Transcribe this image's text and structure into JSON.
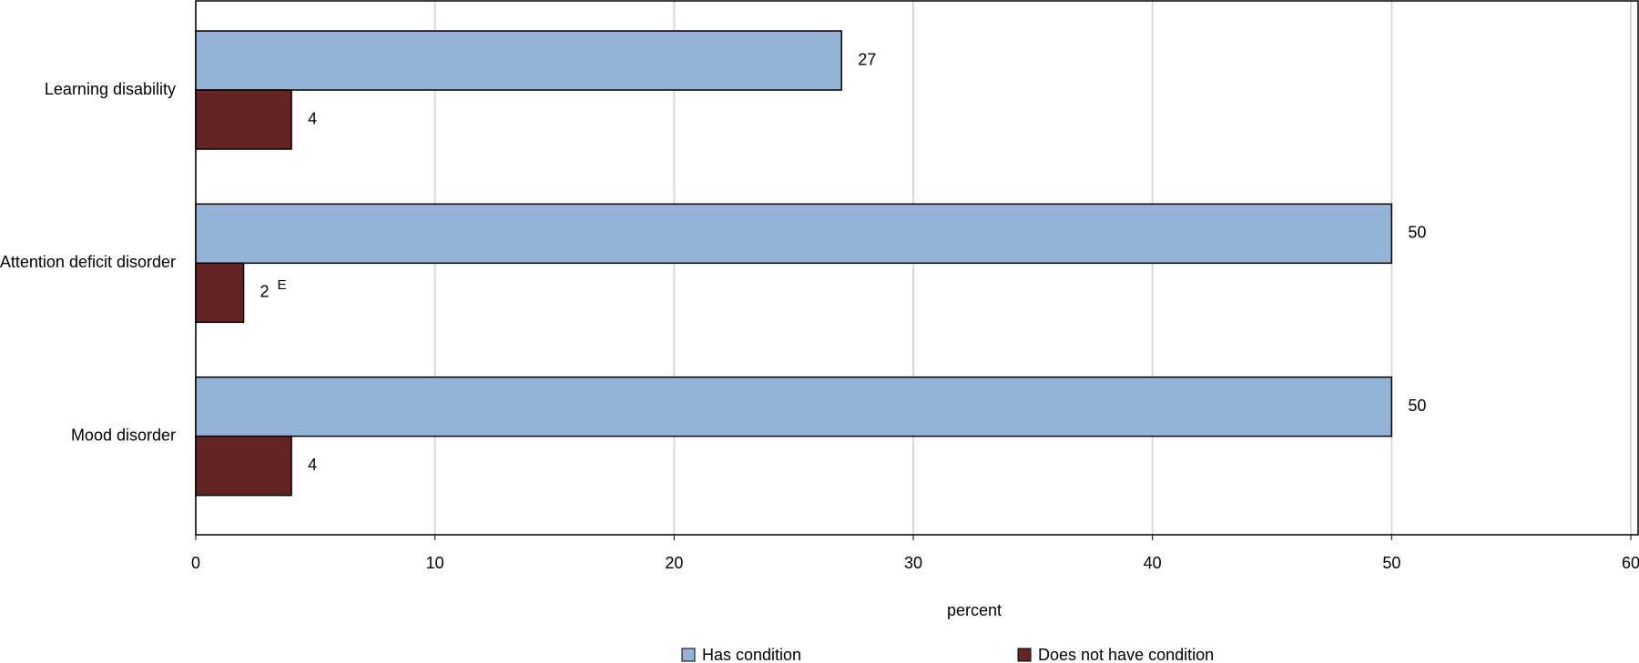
{
  "chart_data": {
    "type": "hbar",
    "categories": [
      "Learning disability",
      "Attention deficit disorder",
      "Mood disorder"
    ],
    "series": [
      {
        "name": "Has condition",
        "color": "#95b3d7",
        "values": [
          27,
          50,
          50
        ]
      },
      {
        "name": "Does not have condition",
        "color": "#632523",
        "values": [
          4,
          2,
          4
        ],
        "value_flags": [
          null,
          "E",
          null
        ]
      }
    ],
    "xlim": [
      0,
      60
    ],
    "xticks": [
      0,
      10,
      20,
      30,
      40,
      50,
      60
    ],
    "xlabel": "percent",
    "grid": true,
    "legend": "bottom"
  }
}
